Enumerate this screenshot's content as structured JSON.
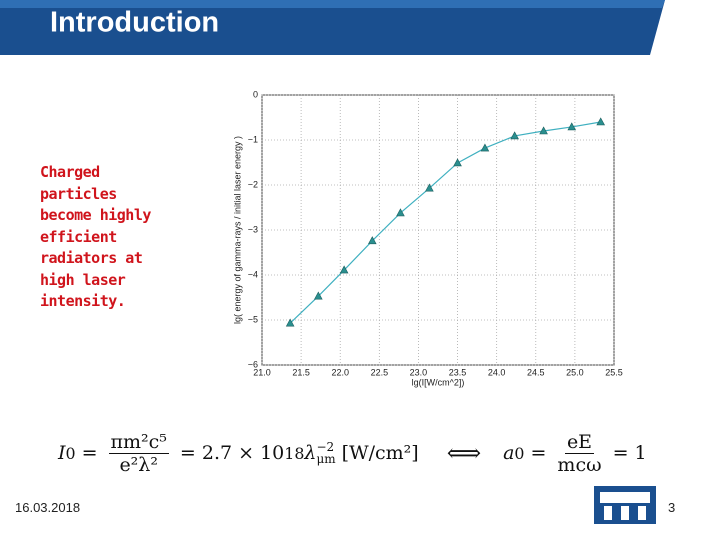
{
  "header": {
    "title": "Introduction"
  },
  "side_text": [
    "Charged",
    "particles",
    "become highly",
    "efficient",
    "radiators at",
    "high laser",
    "intensity."
  ],
  "formula": {
    "lhs": "I",
    "lhs_sub": "0",
    "eq1": "=",
    "frac1_num": "πm²c⁵",
    "frac1_den": "e²λ²",
    "eq2": "= 2.7 × 10",
    "exp": "18",
    "lambda": "λ",
    "lambda_sup": "−2",
    "lambda_sub": "μm",
    "units": "[W/cm²]",
    "iff": "⟺",
    "rhs": "a",
    "rhs_sub": "0",
    "eq3": "=",
    "frac2_num": "eE",
    "frac2_den": "mcω",
    "eq4": "= 1"
  },
  "footer": {
    "date": "16.03.2018",
    "page": "3"
  },
  "chart_data": {
    "type": "line",
    "xlabel": "lg(I[W/cm^2])",
    "ylabel": "lg( energy of gamma-rays / initial laser energy )",
    "series": [
      {
        "color": "#3fb0c0",
        "marker_color": "#2a8f8f",
        "x": [
          21.36,
          21.72,
          22.05,
          22.41,
          22.77,
          23.14,
          23.5,
          23.85,
          24.23,
          24.6,
          24.96,
          25.33
        ],
        "values": [
          -5.07,
          -4.47,
          -3.89,
          -3.24,
          -2.62,
          -2.07,
          -1.51,
          -1.18,
          -0.91,
          -0.8,
          -0.71,
          -0.6
        ]
      }
    ],
    "xlim": [
      21,
      25.5
    ],
    "ylim": [
      -6,
      0
    ],
    "xticks": [
      {
        "value": 21,
        "label": "21.0"
      },
      21.5,
      {
        "value": 22,
        "label": "22.0"
      },
      22.5,
      {
        "value": 23,
        "label": "23.0"
      },
      23.5,
      {
        "value": 24,
        "label": "24.0"
      },
      24.5,
      {
        "value": 25,
        "label": "25.0"
      },
      25.5
    ],
    "yticks": [
      0,
      {
        "value": -1,
        "label": "−1"
      },
      {
        "value": -2,
        "label": "−2"
      },
      {
        "value": -3,
        "label": "−3"
      },
      {
        "value": -4,
        "label": "−4"
      },
      {
        "value": -5,
        "label": "−5"
      },
      {
        "value": -6,
        "label": "−6"
      }
    ],
    "grid": true
  }
}
